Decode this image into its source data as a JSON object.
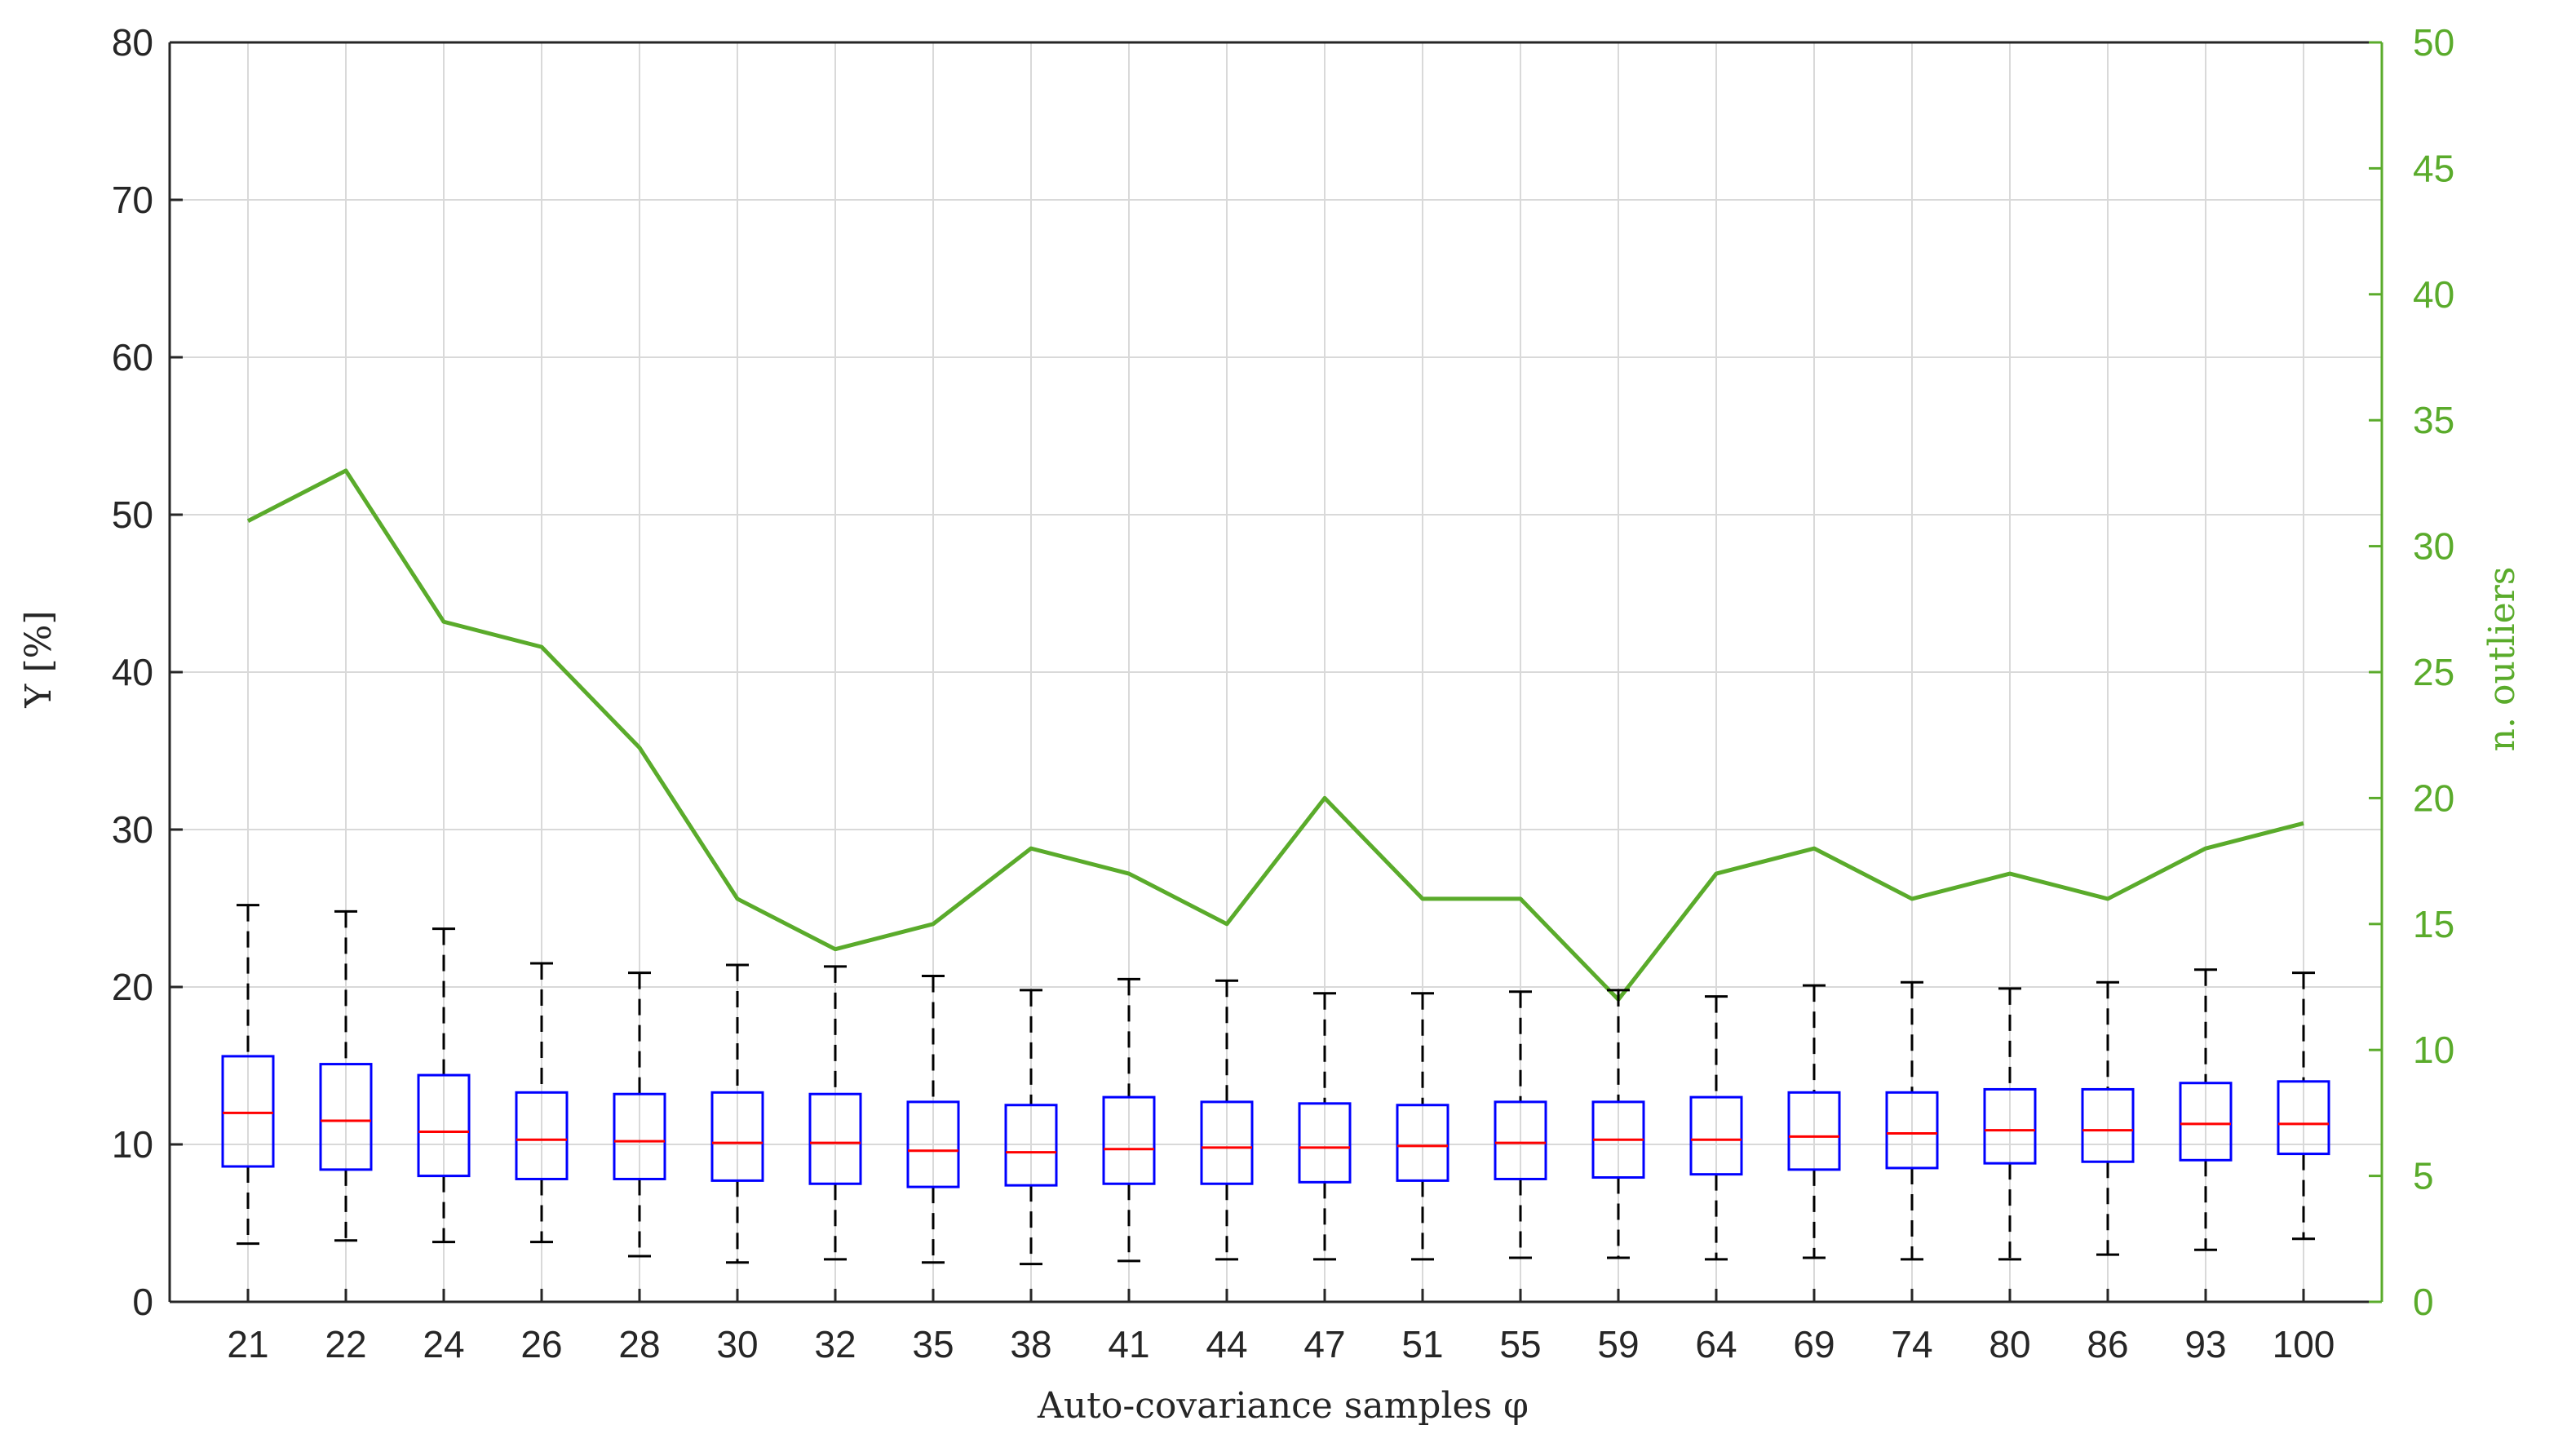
{
  "chart_data": {
    "type": "box",
    "xlabel": "Auto-covariance samples φ",
    "ylabel": "Y [%]",
    "ylabel_right": "n. outliers",
    "ylim": [
      0,
      80
    ],
    "ylim_right": [
      0,
      50
    ],
    "yticks": [
      0,
      10,
      20,
      30,
      40,
      50,
      60,
      70,
      80
    ],
    "yticks_right": [
      0,
      5,
      10,
      15,
      20,
      25,
      30,
      35,
      40,
      45,
      50
    ],
    "grid": true,
    "categories": [
      "21",
      "22",
      "24",
      "26",
      "28",
      "30",
      "32",
      "35",
      "38",
      "41",
      "44",
      "47",
      "51",
      "55",
      "59",
      "64",
      "69",
      "74",
      "80",
      "86",
      "93",
      "100"
    ],
    "boxes": [
      {
        "whisker_low": 3.7,
        "q1": 8.6,
        "median": 12.0,
        "q3": 15.6,
        "whisker_high": 25.2
      },
      {
        "whisker_low": 3.9,
        "q1": 8.4,
        "median": 11.5,
        "q3": 15.1,
        "whisker_high": 24.8
      },
      {
        "whisker_low": 3.8,
        "q1": 8.0,
        "median": 10.8,
        "q3": 14.4,
        "whisker_high": 23.7
      },
      {
        "whisker_low": 3.8,
        "q1": 7.8,
        "median": 10.3,
        "q3": 13.3,
        "whisker_high": 21.5
      },
      {
        "whisker_low": 2.9,
        "q1": 7.8,
        "median": 10.2,
        "q3": 13.2,
        "whisker_high": 20.9
      },
      {
        "whisker_low": 2.5,
        "q1": 7.7,
        "median": 10.1,
        "q3": 13.3,
        "whisker_high": 21.4
      },
      {
        "whisker_low": 2.7,
        "q1": 7.5,
        "median": 10.1,
        "q3": 13.2,
        "whisker_high": 21.3
      },
      {
        "whisker_low": 2.5,
        "q1": 7.3,
        "median": 9.6,
        "q3": 12.7,
        "whisker_high": 20.7
      },
      {
        "whisker_low": 2.4,
        "q1": 7.4,
        "median": 9.5,
        "q3": 12.5,
        "whisker_high": 19.8
      },
      {
        "whisker_low": 2.6,
        "q1": 7.5,
        "median": 9.7,
        "q3": 13.0,
        "whisker_high": 20.5
      },
      {
        "whisker_low": 2.7,
        "q1": 7.5,
        "median": 9.8,
        "q3": 12.7,
        "whisker_high": 20.4
      },
      {
        "whisker_low": 2.7,
        "q1": 7.6,
        "median": 9.8,
        "q3": 12.6,
        "whisker_high": 19.6
      },
      {
        "whisker_low": 2.7,
        "q1": 7.7,
        "median": 9.9,
        "q3": 12.5,
        "whisker_high": 19.6
      },
      {
        "whisker_low": 2.8,
        "q1": 7.8,
        "median": 10.1,
        "q3": 12.7,
        "whisker_high": 19.7
      },
      {
        "whisker_low": 2.8,
        "q1": 7.9,
        "median": 10.3,
        "q3": 12.7,
        "whisker_high": 19.8
      },
      {
        "whisker_low": 2.7,
        "q1": 8.1,
        "median": 10.3,
        "q3": 13.0,
        "whisker_high": 19.4
      },
      {
        "whisker_low": 2.8,
        "q1": 8.4,
        "median": 10.5,
        "q3": 13.3,
        "whisker_high": 20.1
      },
      {
        "whisker_low": 2.7,
        "q1": 8.5,
        "median": 10.7,
        "q3": 13.3,
        "whisker_high": 20.3
      },
      {
        "whisker_low": 2.7,
        "q1": 8.8,
        "median": 10.9,
        "q3": 13.5,
        "whisker_high": 19.9
      },
      {
        "whisker_low": 3.0,
        "q1": 8.9,
        "median": 10.9,
        "q3": 13.5,
        "whisker_high": 20.3
      },
      {
        "whisker_low": 3.3,
        "q1": 9.0,
        "median": 11.3,
        "q3": 13.9,
        "whisker_high": 21.1
      },
      {
        "whisker_low": 4.0,
        "q1": 9.4,
        "median": 11.3,
        "q3": 14.0,
        "whisker_high": 20.9
      }
    ],
    "outliers_series": [
      31,
      33,
      27,
      26,
      22,
      16,
      14,
      15,
      18,
      17,
      15,
      20,
      16,
      16,
      12,
      17,
      18,
      16,
      17,
      16,
      18,
      19
    ],
    "colors": {
      "box": "#0000ff",
      "median": "#ff0000",
      "whisker": "#000000",
      "outliers_line": "#5aab2b",
      "grid": "#d9d9d9",
      "axis": "#262626"
    }
  }
}
